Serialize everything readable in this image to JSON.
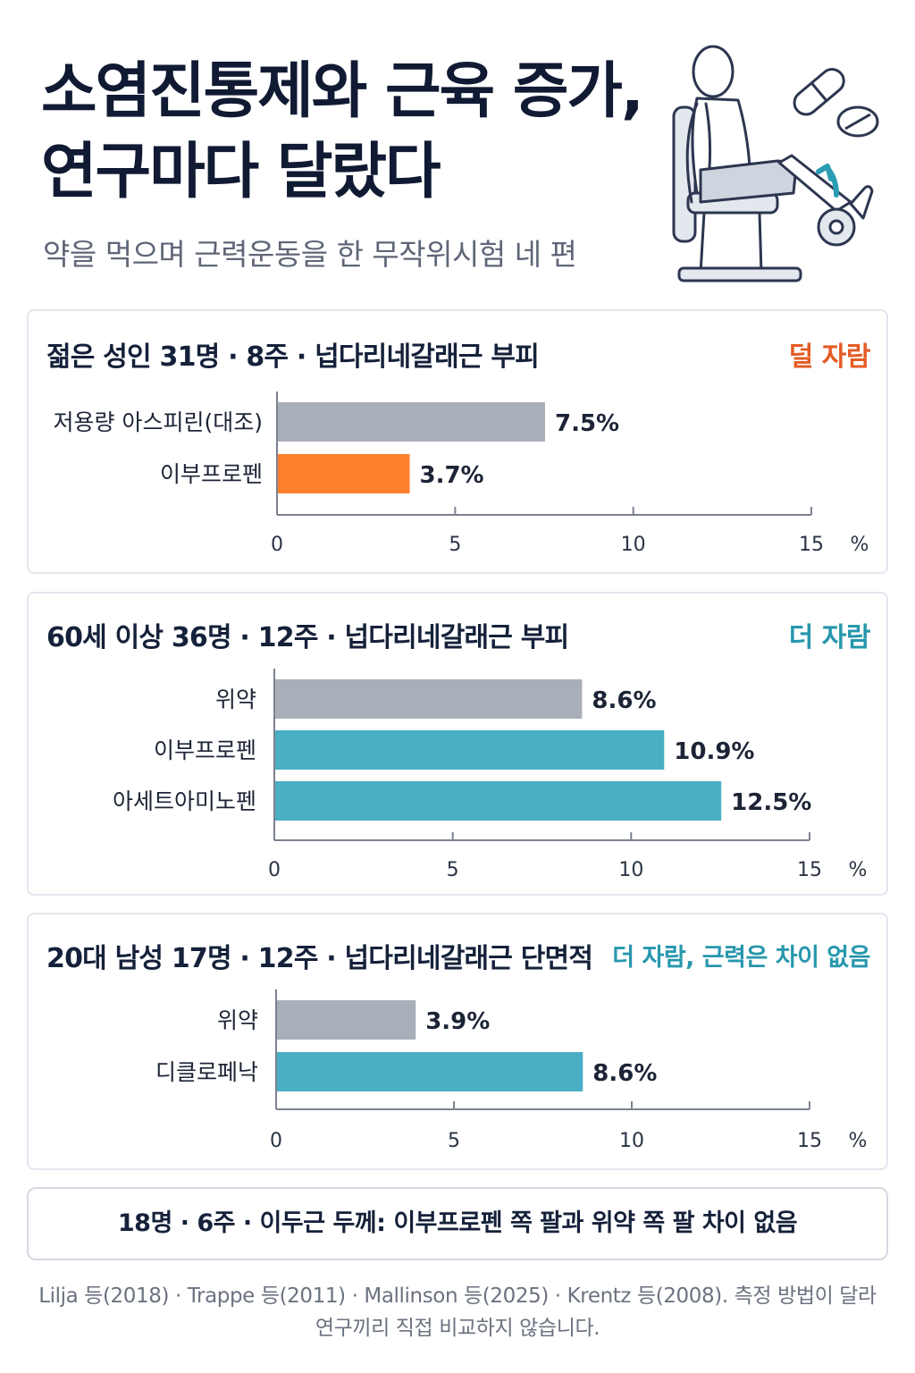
{
  "header": {
    "title_line1": "소염진통제와 근육 증가,",
    "title_line2": "연구마다 달랐다",
    "subtitle": "약을 먹으며 근력운동을 한 무작위시험 네 편"
  },
  "colors": {
    "gray_bar": "#a9afb8",
    "orange_bar": "#fe7f2d",
    "teal_bar": "#4aaec4",
    "orange_text": "#e45c25",
    "teal_text": "#2797ad"
  },
  "icons": [
    "leg-extension-machine-icon",
    "pill-capsule-icon",
    "pill-tablet-icon",
    "up-arrow-icon"
  ],
  "panels": [
    {
      "title": "젊은 성인 31명 · 8주 · 넙다리네갈래근 부피",
      "tag": "덜 자람"
    },
    {
      "title": "60세 이상 36명 · 12주 · 넙다리네갈래근 부피",
      "tag": "더 자람"
    },
    {
      "title": "20대 남성 17명 · 12주 · 넙다리네갈래근 단면적",
      "tag": "더 자람, 근력은 차이 없음"
    }
  ],
  "chart_data": [
    {
      "type": "bar",
      "orientation": "horizontal",
      "categories": [
        "저용량 아스피린(대조)",
        "이부프로펜"
      ],
      "values": [
        7.5,
        3.7
      ],
      "value_labels": [
        "7.5%",
        "3.7%"
      ],
      "bar_colors": [
        "#a9afb8",
        "#fe7f2d"
      ],
      "xlim": [
        0,
        15
      ],
      "xticks": [
        "0",
        "5",
        "10",
        "15"
      ],
      "unit": "%"
    },
    {
      "type": "bar",
      "orientation": "horizontal",
      "categories": [
        "위약",
        "이부프로펜",
        "아세트아미노펜"
      ],
      "values": [
        8.6,
        10.9,
        12.5
      ],
      "value_labels": [
        "8.6%",
        "10.9%",
        "12.5%"
      ],
      "bar_colors": [
        "#a9afb8",
        "#4aaec4",
        "#4aaec4"
      ],
      "xlim": [
        0,
        15
      ],
      "xticks": [
        "0",
        "5",
        "10",
        "15"
      ],
      "unit": "%"
    },
    {
      "type": "bar",
      "orientation": "horizontal",
      "categories": [
        "위약",
        "디클로페낙"
      ],
      "values": [
        3.9,
        8.6
      ],
      "value_labels": [
        "3.9%",
        "8.6%"
      ],
      "bar_colors": [
        "#a9afb8",
        "#4aaec4"
      ],
      "xlim": [
        0,
        15
      ],
      "xticks": [
        "0",
        "5",
        "10",
        "15"
      ],
      "unit": "%"
    }
  ],
  "note": "18명 · 6주 · 이두근 두께: 이부프로펜 쪽 팔과 위약 쪽 팔 차이 없음",
  "source": {
    "line1": "Lilja 등(2018) · Trappe 등(2011) · Mallinson 등(2025) · Krentz 등(2008). 측정 방법이 달라",
    "line2": "연구끼리 직접 비교하지 않습니다."
  }
}
